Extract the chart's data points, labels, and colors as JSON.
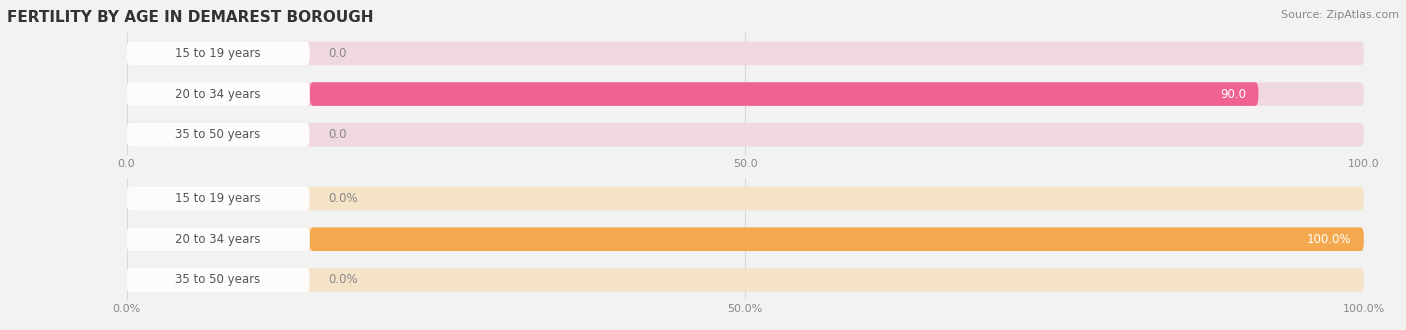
{
  "title": "FERTILITY BY AGE IN DEMAREST BOROUGH",
  "source": "Source: ZipAtlas.com",
  "top_chart": {
    "categories": [
      "15 to 19 years",
      "20 to 34 years",
      "35 to 50 years"
    ],
    "values": [
      0.0,
      90.0,
      0.0
    ],
    "xlim": [
      0,
      100
    ],
    "xticks": [
      0.0,
      50.0,
      100.0
    ],
    "bar_color": "#f06292",
    "bar_bg_color": "#f0d8df"
  },
  "bottom_chart": {
    "categories": [
      "15 to 19 years",
      "20 to 34 years",
      "35 to 50 years"
    ],
    "values": [
      0.0,
      100.0,
      0.0
    ],
    "xlim": [
      0,
      100
    ],
    "xticks": [
      0.0,
      50.0,
      100.0
    ],
    "bar_color": "#f5a94e",
    "bar_bg_color": "#f5e3c8"
  },
  "bg_color": "#f2f2f2",
  "label_color": "#555555",
  "tick_color": "#888888",
  "title_fontsize": 11,
  "source_fontsize": 8,
  "label_fontsize": 8.5,
  "value_fontsize": 8.5,
  "tick_fontsize": 8
}
